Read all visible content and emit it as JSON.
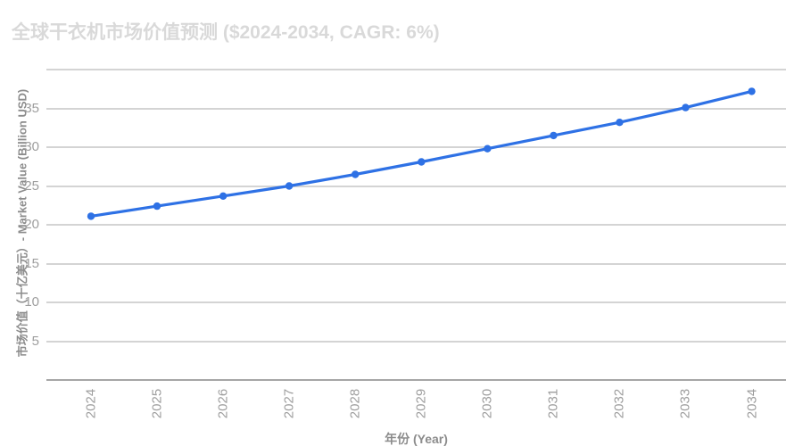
{
  "title": "全球干衣机市场价值预测 ($2024-2034, CAGR: 6%)",
  "colors": {
    "line": "#2e71e5",
    "marker": "#2e71e5",
    "title_text": "#d9d9d9",
    "tick_label": "#9e9e9e",
    "axis_title": "#8c8c8c",
    "gridline": "#d4d4d4",
    "axis_line": "#a6a6a6",
    "background": "#ffffff"
  },
  "chart_data": {
    "type": "line",
    "title": "全球干衣机市场价值预测 ($2024-2034, CAGR: 6%)",
    "xlabel": "年份 (Year)",
    "ylabel": "市场价值（十亿美元）- Market Value (Billion USD)",
    "categories": [
      "2024",
      "2025",
      "2026",
      "2027",
      "2028",
      "2029",
      "2030",
      "2031",
      "2032",
      "2033",
      "2034"
    ],
    "series": [
      {
        "name": "市场价值 (十亿美元)",
        "values": [
          21.1,
          22.4,
          23.7,
          25.0,
          26.5,
          28.1,
          29.8,
          31.5,
          33.2,
          35.1,
          37.2
        ]
      }
    ],
    "ylim": [
      0,
      40
    ],
    "ytick_step": 5,
    "yticks_labeled": [
      5,
      10,
      15,
      20,
      25,
      30,
      35
    ],
    "grid": true,
    "legend": false
  }
}
